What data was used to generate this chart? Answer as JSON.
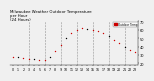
{
  "title": "Milwaukee Weather Outdoor Temperature\nper Hour\n(24 Hours)",
  "title_fontsize": 2.8,
  "background_color": "#f0f0f0",
  "plot_bg_color": "#f0f0f0",
  "grid_color": "#888888",
  "hours": [
    0,
    1,
    2,
    3,
    4,
    5,
    6,
    7,
    8,
    9,
    10,
    11,
    12,
    13,
    14,
    15,
    16,
    17,
    18,
    19,
    20,
    21,
    22,
    23
  ],
  "temps": [
    28,
    27,
    26,
    25,
    25,
    24,
    24,
    28,
    35,
    42,
    50,
    56,
    60,
    62,
    61,
    60,
    58,
    56,
    52,
    48,
    44,
    40,
    36,
    33
  ],
  "dot_color_red": "#cc0000",
  "dot_color_black": "#000000",
  "ylim_min": 18,
  "ylim_max": 70,
  "ylabel_fontsize": 2.5,
  "xlabel_fontsize": 2.3,
  "ytick_vals": [
    20,
    30,
    40,
    50,
    60,
    70
  ],
  "ytick_labels": [
    "20",
    "30",
    "40",
    "50",
    "60",
    "70"
  ],
  "legend_label": "Outdoor Temp",
  "legend_color": "#cc0000",
  "vgrid_hours": [
    3,
    6,
    9,
    12,
    15,
    18,
    21
  ]
}
